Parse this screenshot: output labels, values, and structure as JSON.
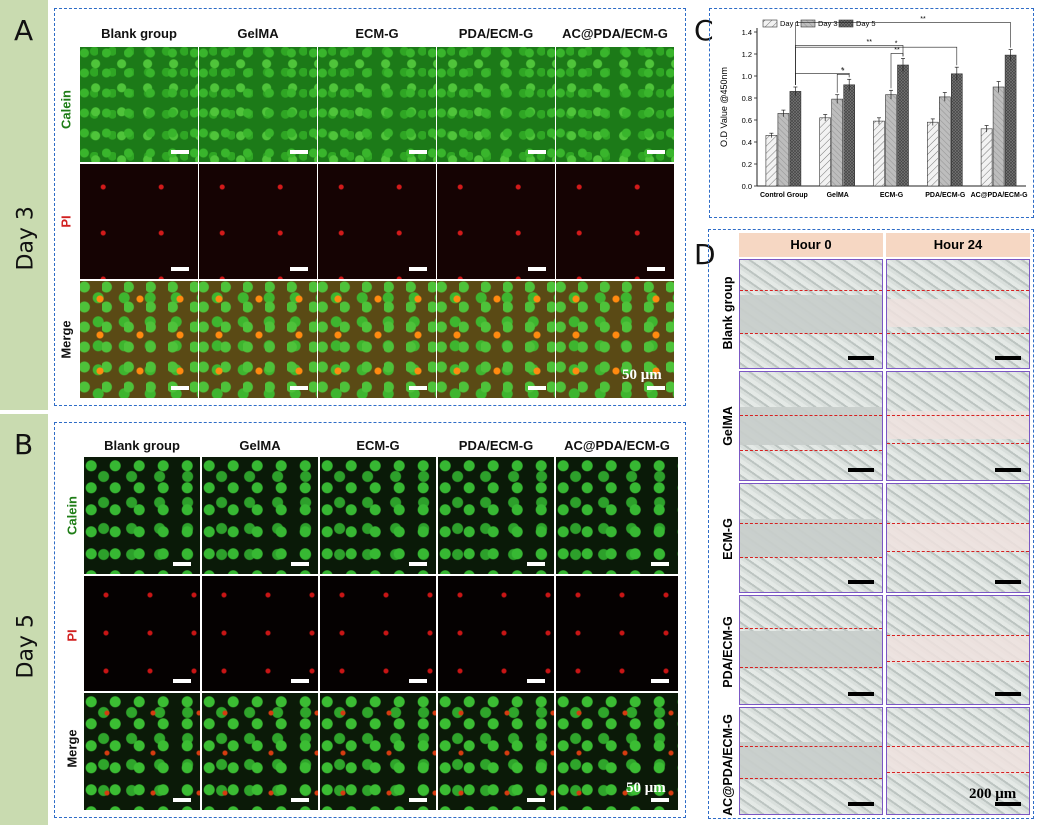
{
  "panels": {
    "a": "A",
    "b": "B",
    "c": "C",
    "d": "D"
  },
  "days": {
    "a": "Day 3",
    "b": "Day 5"
  },
  "groups": [
    "Blank group",
    "GelMA",
    "ECM-G",
    "PDA/ECM-G",
    "AC@PDA/ECM-G"
  ],
  "rows": {
    "calcein": "Calein",
    "pi": "PI",
    "merge": "Merge"
  },
  "scale_bars": {
    "fluorescence": "50 μm",
    "migration": "200 μm"
  },
  "migration": {
    "timepoints": [
      "Hour 0",
      "Hour 24"
    ],
    "groups": [
      "Blank group",
      "GelMA",
      "ECM-G",
      "PDA/ECM-G",
      "AC@PDA/ECM-G"
    ]
  },
  "colors": {
    "calcein_label": "#1e7d16",
    "pi_label": "#d11f1f",
    "box_border": "#2e6cc7",
    "sidebar": "#c9dbb0",
    "header_fill": "#f6d7c3"
  },
  "chart_data": {
    "type": "bar",
    "title": "",
    "xlabel": "",
    "ylabel": "O.D Value @450nm",
    "ylim": [
      0,
      1.4
    ],
    "yticks": [
      "0.0",
      "0.2",
      "0.4",
      "0.6",
      "0.8",
      "1.0",
      "1.2",
      "1.4"
    ],
    "categories": [
      "Control Group",
      "GelMA",
      "ECM-G",
      "PDA/ECM-G",
      "AC@PDA/ECM-G"
    ],
    "series": [
      {
        "name": "Day 1",
        "values": [
          0.46,
          0.62,
          0.59,
          0.58,
          0.52
        ],
        "errors": [
          0.02,
          0.03,
          0.03,
          0.03,
          0.03
        ]
      },
      {
        "name": "Day 3",
        "values": [
          0.66,
          0.79,
          0.83,
          0.81,
          0.9
        ],
        "errors": [
          0.03,
          0.04,
          0.04,
          0.04,
          0.05
        ]
      },
      {
        "name": "Day 5",
        "values": [
          0.86,
          0.92,
          1.1,
          1.02,
          1.19
        ],
        "errors": [
          0.04,
          0.05,
          0.06,
          0.06,
          0.05
        ]
      }
    ],
    "significance": [
      "*",
      "**",
      "*",
      "**",
      "*",
      "**"
    ],
    "legend_position": "top-left",
    "grid": false
  }
}
